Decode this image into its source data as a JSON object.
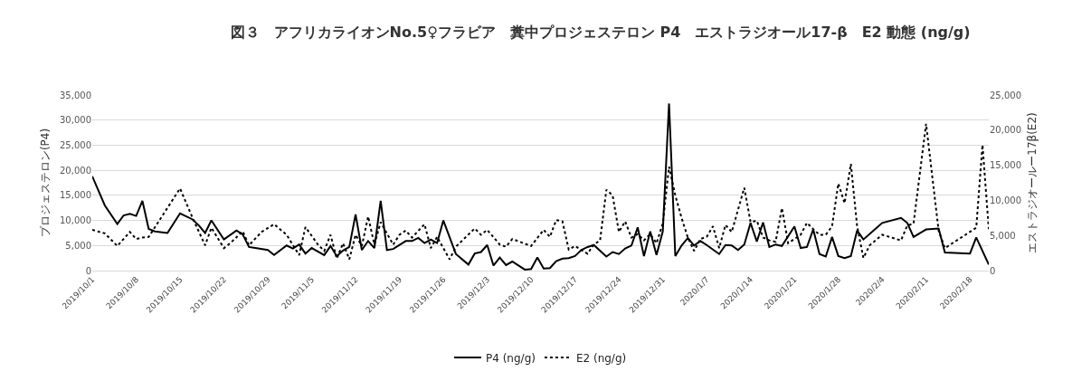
{
  "chart_data": {
    "type": "line",
    "title": "図３　アフリカライオンNo.5♀フラビア　糞中プロジェステロン P4　エストラジオール17-β　E2 動態 (ng/g)",
    "ylabel": "プロジェステロン(P4)",
    "y2label": "エストラジオールー17β(E2)",
    "xlim": [
      "2019-10-01",
      "2020-02-21"
    ],
    "xticks": [
      {
        "value": "2019-10-01",
        "label": "2019/10/1"
      },
      {
        "value": "2019-10-08",
        "label": "2019/10/8"
      },
      {
        "value": "2019-10-15",
        "label": "2019/10/15"
      },
      {
        "value": "2019-10-22",
        "label": "2019/10/22"
      },
      {
        "value": "2019-10-29",
        "label": "2019/10/29"
      },
      {
        "value": "2019-11-05",
        "label": "2019/11/5"
      },
      {
        "value": "2019-11-12",
        "label": "2019/11/12"
      },
      {
        "value": "2019-11-19",
        "label": "2019/11/19"
      },
      {
        "value": "2019-11-26",
        "label": "2019/11/26"
      },
      {
        "value": "2019-12-03",
        "label": "2019/12/3"
      },
      {
        "value": "2019-12-10",
        "label": "2019/12/10"
      },
      {
        "value": "2019-12-17",
        "label": "2019/12/17"
      },
      {
        "value": "2019-12-24",
        "label": "2019/12/24"
      },
      {
        "value": "2019-12-31",
        "label": "2019/12/31"
      },
      {
        "value": "2020-01-07",
        "label": "2020/1/7"
      },
      {
        "value": "2020-01-14",
        "label": "2020/1/14"
      },
      {
        "value": "2020-01-21",
        "label": "2020/1/21"
      },
      {
        "value": "2020-01-28",
        "label": "2020/1/28"
      },
      {
        "value": "2020-02-04",
        "label": "2020/2/4"
      },
      {
        "value": "2020-02-11",
        "label": "2020/2/11"
      },
      {
        "value": "2020-02-18",
        "label": "2020/2/18"
      }
    ],
    "ylim": [
      0,
      35000
    ],
    "yticks": [
      {
        "value": 0,
        "label": "0"
      },
      {
        "value": 5000,
        "label": "5,000"
      },
      {
        "value": 10000,
        "label": "10,000"
      },
      {
        "value": 15000,
        "label": "15,000"
      },
      {
        "value": 20000,
        "label": "20,000"
      },
      {
        "value": 25000,
        "label": "25,000"
      },
      {
        "value": 30000,
        "label": "30,000"
      },
      {
        "value": 35000,
        "label": "35,000"
      }
    ],
    "y2lim": [
      0,
      25000
    ],
    "y2ticks": [
      {
        "value": 0,
        "label": "0"
      },
      {
        "value": 5000,
        "label": "5,000"
      },
      {
        "value": 10000,
        "label": "10,000"
      },
      {
        "value": 15000,
        "label": "15,000"
      },
      {
        "value": 20000,
        "label": "20,000"
      },
      {
        "value": 25000,
        "label": "25,000"
      }
    ],
    "grid": "y",
    "legend": "bottom",
    "marker": "none",
    "series": [
      {
        "name": "P4 (ng/g)",
        "color": "#000000",
        "line_style": "solid",
        "x": [
          "2019-10-01",
          "2019-10-03",
          "2019-10-05",
          "2019-10-06",
          "2019-10-07",
          "2019-10-08",
          "2019-10-09",
          "2019-10-10",
          "2019-10-11",
          "2019-10-13",
          "2019-10-15",
          "2019-10-17",
          "2019-10-18",
          "2019-10-19",
          "2019-10-20",
          "2019-10-22",
          "2019-10-24",
          "2019-10-25",
          "2019-10-26",
          "2019-10-27",
          "2019-10-29",
          "2019-10-30",
          "2019-11-01",
          "2019-11-02",
          "2019-11-03",
          "2019-11-04",
          "2019-11-05",
          "2019-11-07",
          "2019-11-08",
          "2019-11-09",
          "2019-11-10",
          "2019-11-11",
          "2019-11-12",
          "2019-11-13",
          "2019-11-14",
          "2019-11-15",
          "2019-11-16",
          "2019-11-17",
          "2019-11-18",
          "2019-11-20",
          "2019-11-21",
          "2019-11-22",
          "2019-11-23",
          "2019-11-24",
          "2019-11-25",
          "2019-11-26",
          "2019-11-28",
          "2019-11-30",
          "2019-12-01",
          "2019-12-02",
          "2019-12-03",
          "2019-12-04",
          "2019-12-05",
          "2019-12-06",
          "2019-12-07",
          "2019-12-09",
          "2019-12-10",
          "2019-12-11",
          "2019-12-12",
          "2019-12-13",
          "2019-12-14",
          "2019-12-15",
          "2019-12-16",
          "2019-12-17",
          "2019-12-18",
          "2019-12-19",
          "2019-12-20",
          "2019-12-22",
          "2019-12-23",
          "2019-12-24",
          "2019-12-25",
          "2019-12-26",
          "2019-12-27",
          "2019-12-28",
          "2019-12-29",
          "2019-12-30",
          "2019-12-31",
          "2020-01-01",
          "2020-01-02",
          "2020-01-03",
          "2020-01-04",
          "2020-01-05",
          "2020-01-06",
          "2020-01-07",
          "2020-01-09",
          "2020-01-10",
          "2020-01-11",
          "2020-01-12",
          "2020-01-13",
          "2020-01-14",
          "2020-01-15",
          "2020-01-16",
          "2020-01-17",
          "2020-01-18",
          "2020-01-19",
          "2020-01-21",
          "2020-01-22",
          "2020-01-23",
          "2020-01-24",
          "2020-01-25",
          "2020-01-26",
          "2020-01-27",
          "2020-01-28",
          "2020-01-29",
          "2020-01-30",
          "2020-01-31",
          "2020-02-01",
          "2020-02-04",
          "2020-02-07",
          "2020-02-08",
          "2020-02-09",
          "2020-02-11",
          "2020-02-13",
          "2020-02-14",
          "2020-02-18",
          "2020-02-19",
          "2020-02-21"
        ],
        "values": [
          18800,
          13000,
          9300,
          11000,
          11300,
          10900,
          13900,
          8300,
          7800,
          7500,
          11400,
          10200,
          9000,
          7500,
          10000,
          6200,
          8000,
          7200,
          4700,
          4500,
          4100,
          3100,
          5000,
          4400,
          5200,
          3400,
          4500,
          3100,
          4900,
          2900,
          4000,
          4700,
          11200,
          4100,
          5900,
          4500,
          13900,
          4100,
          4300,
          5900,
          5900,
          6500,
          5500,
          6200,
          5500,
          10000,
          3300,
          1200,
          3400,
          3700,
          5100,
          1000,
          2600,
          1100,
          1800,
          200,
          300,
          2600,
          400,
          500,
          1900,
          2400,
          2500,
          2900,
          4100,
          4700,
          5100,
          2800,
          3700,
          3300,
          4400,
          5000,
          8600,
          2900,
          7800,
          3100,
          7800,
          33300,
          2900,
          5000,
          6500,
          5000,
          5900,
          5100,
          3300,
          5100,
          5000,
          4100,
          5200,
          9500,
          5800,
          9600,
          4700,
          5200,
          4900,
          8800,
          4500,
          4700,
          8200,
          3300,
          2800,
          6700,
          2900,
          2500,
          2900,
          8000,
          6200,
          9500,
          10500,
          9500,
          6700,
          8200,
          8400,
          3600,
          3400,
          6600,
          1200
        ]
      },
      {
        "name": "E2 (ng/g)",
        "color": "#000000",
        "line_style": "dotted",
        "axis": "y2",
        "x": [
          "2019-10-01",
          "2019-10-03",
          "2019-10-05",
          "2019-10-07",
          "2019-10-08",
          "2019-10-09",
          "2019-10-10",
          "2019-10-15",
          "2019-10-17",
          "2019-10-19",
          "2019-10-20",
          "2019-10-22",
          "2019-10-23",
          "2019-10-25",
          "2019-10-26",
          "2019-10-28",
          "2019-10-30",
          "2019-11-01",
          "2019-11-03",
          "2019-11-04",
          "2019-11-06",
          "2019-11-07",
          "2019-11-08",
          "2019-11-09",
          "2019-11-10",
          "2019-11-11",
          "2019-11-12",
          "2019-11-13",
          "2019-11-14",
          "2019-11-15",
          "2019-11-16",
          "2019-11-18",
          "2019-11-19",
          "2019-11-20",
          "2019-11-21",
          "2019-11-23",
          "2019-11-24",
          "2019-11-25",
          "2019-11-27",
          "2019-11-28",
          "2019-12-01",
          "2019-12-02",
          "2019-12-03",
          "2019-12-05",
          "2019-12-06",
          "2019-12-07",
          "2019-12-10",
          "2019-12-12",
          "2019-12-13",
          "2019-12-14",
          "2019-12-15",
          "2019-12-16",
          "2019-12-17",
          "2019-12-19",
          "2019-12-20",
          "2019-12-21",
          "2019-12-22",
          "2019-12-23",
          "2019-12-24",
          "2019-12-25",
          "2019-12-26",
          "2019-12-27",
          "2019-12-28",
          "2019-12-29",
          "2019-12-30",
          "2019-12-31",
          "2020-01-01",
          "2020-01-02",
          "2020-01-03",
          "2020-01-04",
          "2020-01-05",
          "2020-01-06",
          "2020-01-07",
          "2020-01-08",
          "2020-01-09",
          "2020-01-10",
          "2020-01-11",
          "2020-01-13",
          "2020-01-14",
          "2020-01-15",
          "2020-01-16",
          "2020-01-17",
          "2020-01-18",
          "2020-01-19",
          "2020-01-20",
          "2020-01-22",
          "2020-01-23",
          "2020-01-24",
          "2020-01-25",
          "2020-01-26",
          "2020-01-27",
          "2020-01-28",
          "2020-01-29",
          "2020-01-30",
          "2020-01-31",
          "2020-02-01",
          "2020-02-02",
          "2020-02-04",
          "2020-02-07",
          "2020-02-08",
          "2020-02-09",
          "2020-02-11",
          "2020-02-13",
          "2020-02-14",
          "2020-02-19",
          "2020-02-20",
          "2020-02-21"
        ],
        "values": [
          5800,
          5300,
          3500,
          5500,
          4500,
          4700,
          4800,
          11700,
          7500,
          3600,
          6100,
          3200,
          3900,
          5600,
          3600,
          5500,
          6600,
          5100,
          2200,
          6200,
          3700,
          2800,
          5100,
          1700,
          3900,
          1600,
          5100,
          3500,
          7700,
          3700,
          6900,
          3700,
          5100,
          5700,
          4700,
          6600,
          3200,
          4800,
          1600,
          3400,
          6000,
          5100,
          5800,
          3700,
          3400,
          4500,
          3500,
          5800,
          4800,
          7200,
          7000,
          3000,
          3500,
          2400,
          3700,
          4300,
          11500,
          10700,
          5500,
          7000,
          4700,
          5200,
          4300,
          5200,
          3900,
          6700,
          14800,
          10700,
          7500,
          4700,
          2800,
          4500,
          4800,
          6300,
          3200,
          6500,
          5500,
          11800,
          6900,
          7100,
          4700,
          4300,
          4100,
          8900,
          3900,
          5100,
          6800,
          5900,
          5100,
          5100,
          6300,
          12400,
          9600,
          15200,
          6300,
          1800,
          3600,
          5100,
          4300,
          6400,
          6700,
          20900,
          5700,
          3200,
          6100,
          17900,
          5900
        ]
      }
    ]
  }
}
